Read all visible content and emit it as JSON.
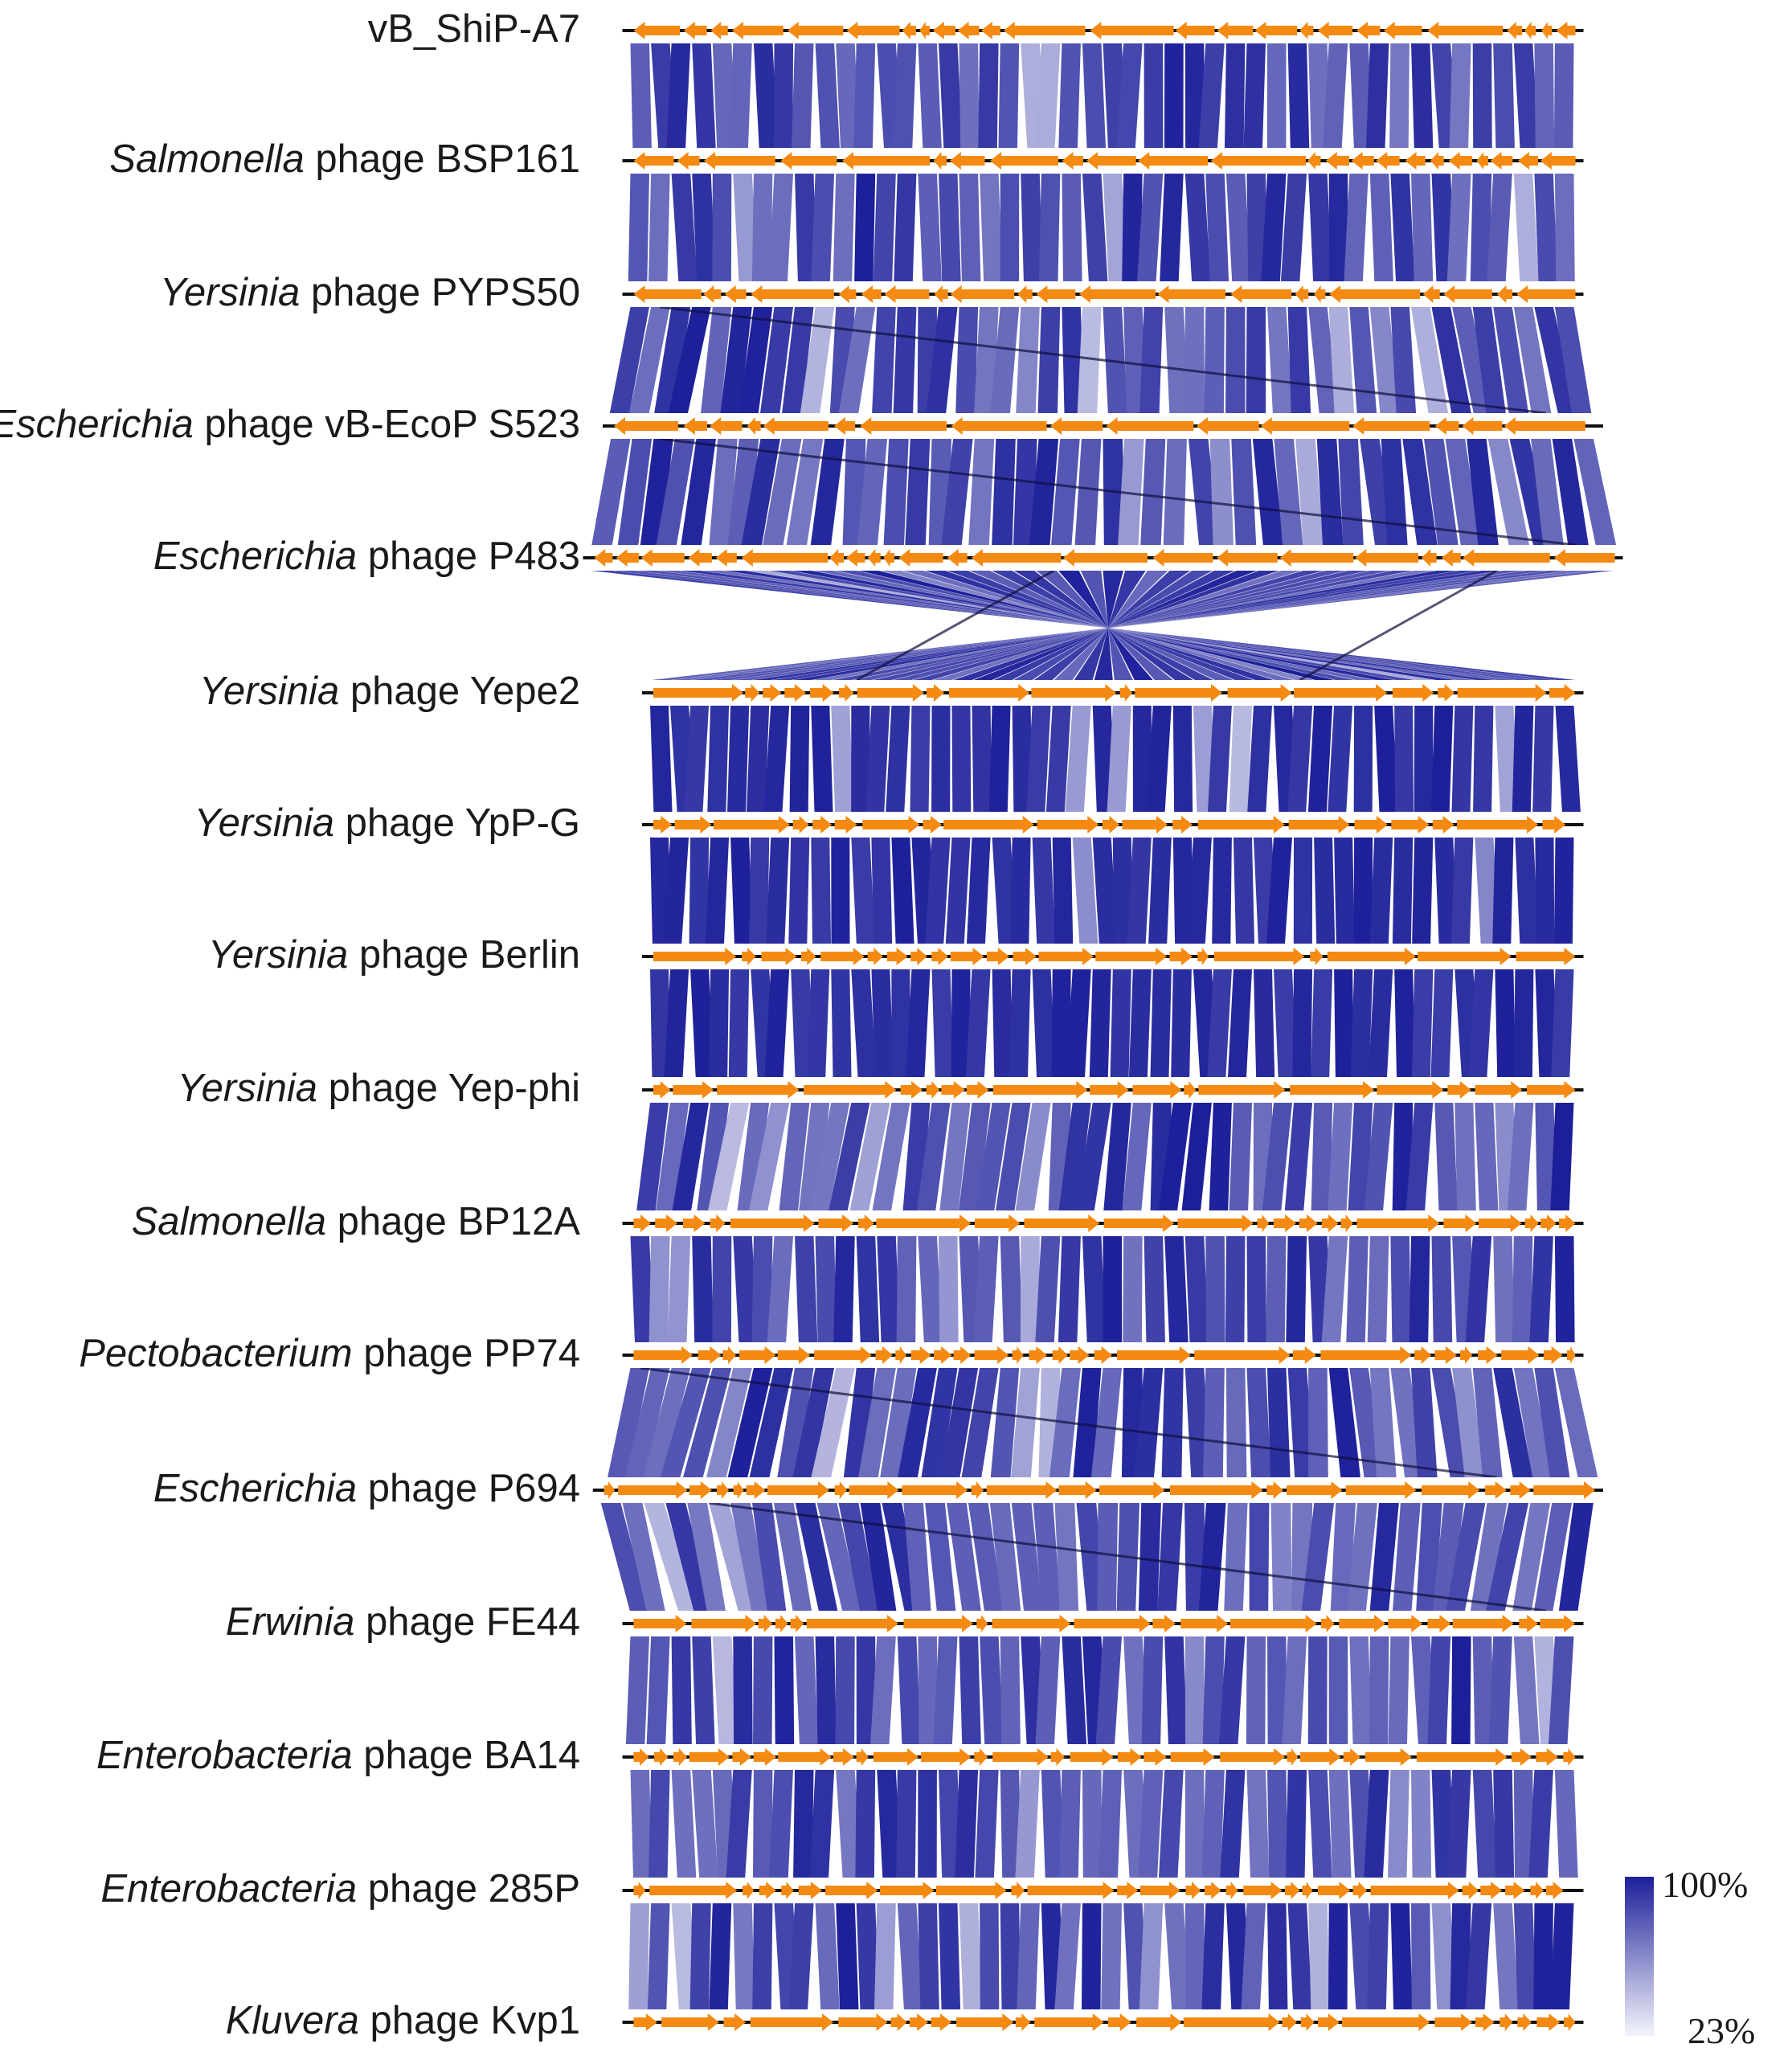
{
  "colors": {
    "gene": "#f58a12",
    "gene_special": "#40d9d0",
    "genome_line": "#111111",
    "identity_high": "#1c1f99",
    "identity_low": "#f4f4fb",
    "link_shadow": "#0f0f40"
  },
  "genomes": [
    {
      "species": "",
      "rest": "vB_ShiP-A7",
      "strand": -1,
      "span": [
        0.02,
        0.98
      ]
    },
    {
      "species": "Salmonella",
      "rest": " phage BSP161",
      "strand": -1,
      "span": [
        0.02,
        0.98
      ]
    },
    {
      "species": "Yersinia",
      "rest": " phage PYPS50",
      "strand": -1,
      "span": [
        0.02,
        0.98
      ]
    },
    {
      "species": "Escherichia",
      "rest": " phage vB-EcoP S523",
      "strand": -1,
      "span": [
        0.0,
        1.0
      ]
    },
    {
      "species": "Escherichia",
      "rest": " phage P483",
      "strand": -1,
      "span": [
        -0.02,
        1.02
      ]
    },
    {
      "species": "Yersinia",
      "rest": " phage Yepe2",
      "strand": 1,
      "span": [
        0.04,
        0.98
      ]
    },
    {
      "species": "Yersinia",
      "rest": " phage YpP-G",
      "strand": 1,
      "span": [
        0.04,
        0.98
      ]
    },
    {
      "species": "Yersinia",
      "rest": " phage Berlin",
      "strand": 1,
      "span": [
        0.04,
        0.98
      ]
    },
    {
      "species": "Yersinia",
      "rest": " phage Yep-phi",
      "strand": 1,
      "span": [
        0.04,
        0.98
      ]
    },
    {
      "species": "Salmonella",
      "rest": " phage BP12A",
      "strand": 1,
      "span": [
        0.02,
        0.98
      ]
    },
    {
      "species": "Pectobacterium",
      "rest": " phage PP74",
      "strand": 1,
      "span": [
        0.02,
        0.98
      ]
    },
    {
      "species": "Escherichia",
      "rest": " phage P694",
      "strand": 1,
      "span": [
        -0.01,
        1.0
      ]
    },
    {
      "species": "Erwinia",
      "rest": " phage FE44",
      "strand": 1,
      "span": [
        0.02,
        0.98
      ]
    },
    {
      "species": "Enterobacteria",
      "rest": " phage BA14",
      "strand": 1,
      "span": [
        0.02,
        0.98
      ]
    },
    {
      "species": "Enterobacteria",
      "rest": " phage 285P",
      "strand": 1,
      "span": [
        0.02,
        0.98
      ]
    },
    {
      "species": "Kluvera",
      "rest": " phage Kvp1",
      "strand": 1,
      "span": [
        0.02,
        0.98
      ]
    }
  ],
  "legend": {
    "title": "",
    "max_label": "100%",
    "min_label": "23%"
  }
}
